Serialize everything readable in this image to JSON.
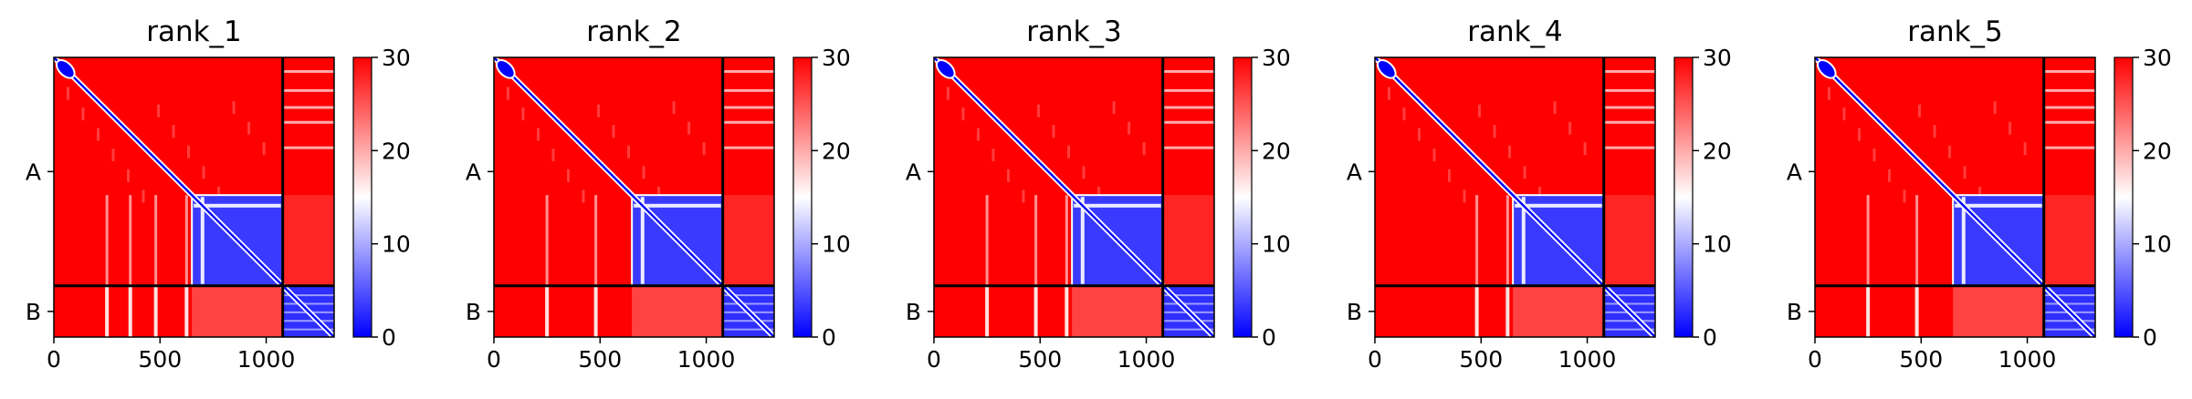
{
  "chart_data": {
    "type": "heatmap",
    "panel_count": 5,
    "colorscale": {
      "name": "bwr",
      "colors": [
        "#0000ff",
        "#ffffff",
        "#ff0000"
      ],
      "range": [
        0,
        30
      ]
    },
    "x_range": [
      0,
      1320
    ],
    "x_ticks": [
      {
        "value": 0,
        "label": "0"
      },
      {
        "value": 500,
        "label": "500"
      },
      {
        "value": 1000,
        "label": "1000"
      }
    ],
    "colorbar_ticks": [
      {
        "value": 0,
        "label": "0"
      },
      {
        "value": 10,
        "label": "10"
      },
      {
        "value": 20,
        "label": "20"
      },
      {
        "value": 30,
        "label": "30"
      }
    ],
    "chains": [
      {
        "label": "A",
        "start": 0,
        "end": 1078
      },
      {
        "label": "B",
        "start": 1078,
        "end": 1320
      }
    ],
    "inner_block": [
      650,
      1078
    ],
    "panels": [
      {
        "title": "rank_1",
        "b_stripes": [
          250,
          360,
          480,
          625
        ]
      },
      {
        "title": "rank_2",
        "b_stripes": [
          250,
          480
        ]
      },
      {
        "title": "rank_3",
        "b_stripes": [
          250,
          480,
          625
        ]
      },
      {
        "title": "rank_4",
        "b_stripes": [
          480,
          625
        ]
      },
      {
        "title": "rank_5",
        "b_stripes": [
          250,
          480
        ]
      }
    ]
  }
}
